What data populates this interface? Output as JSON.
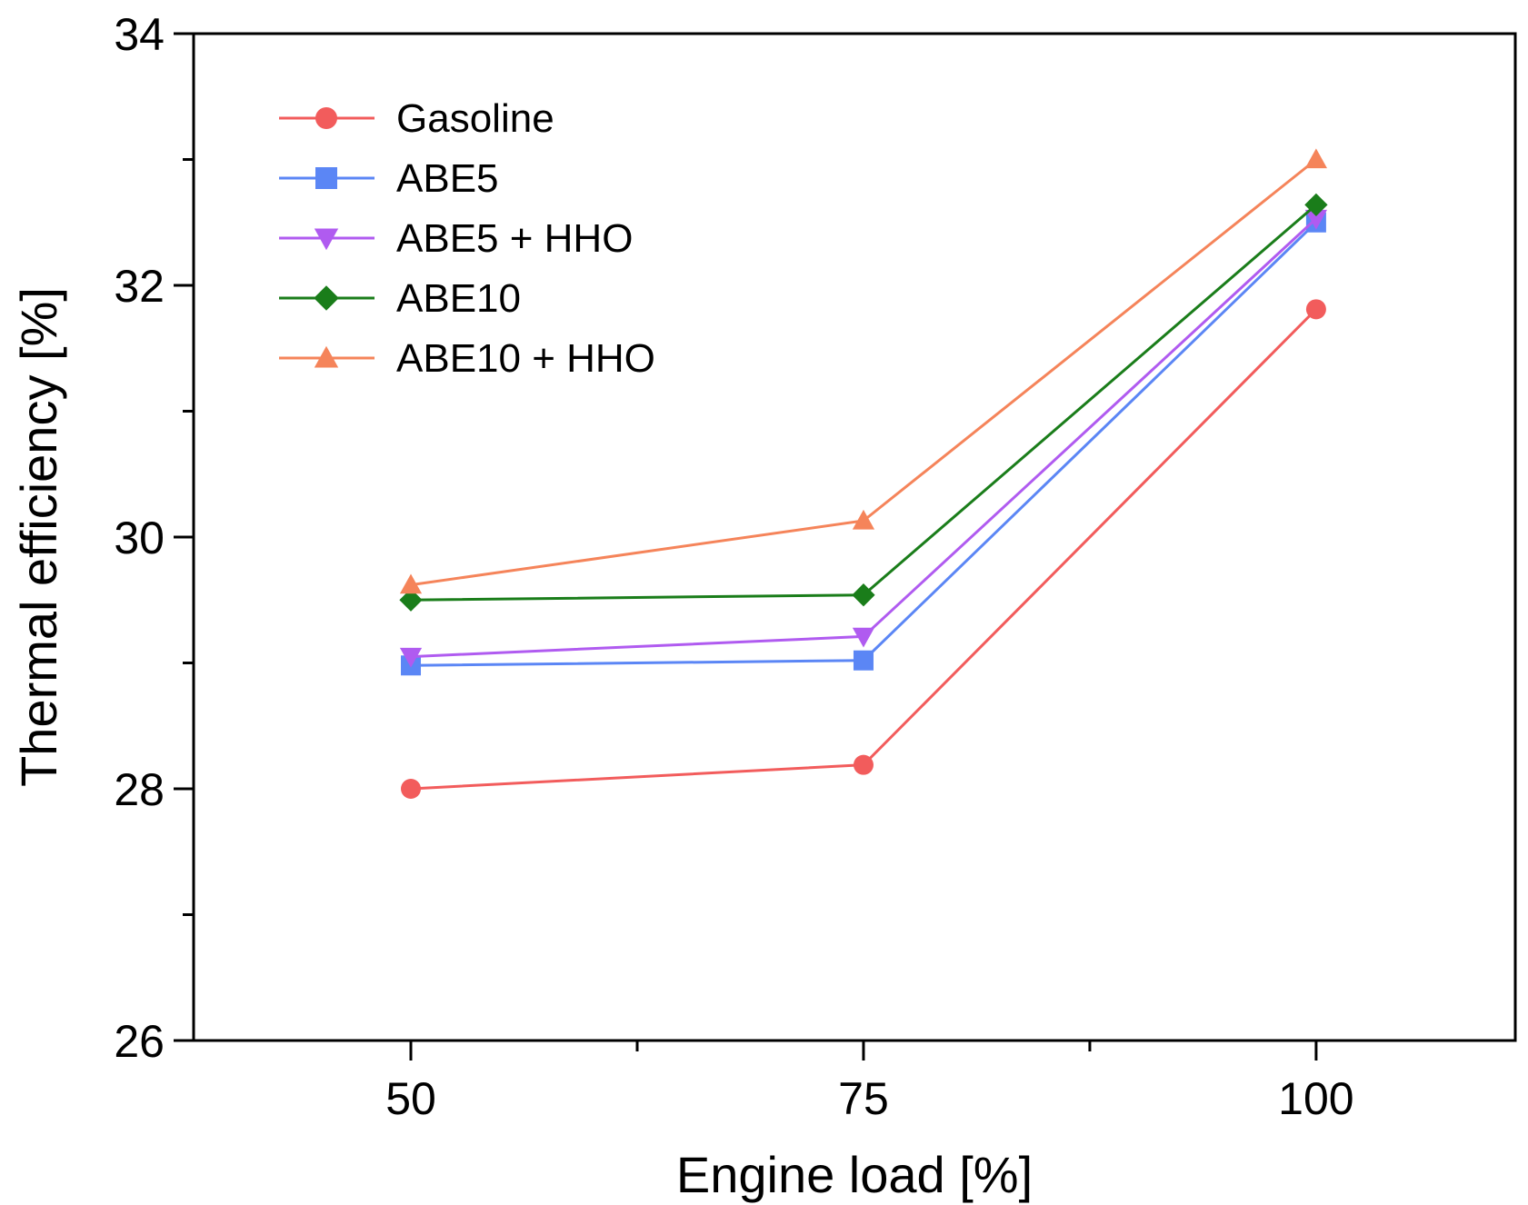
{
  "chart_data": {
    "type": "line",
    "title": "",
    "xlabel": "Engine load [%]",
    "ylabel": "Thermal efficiency [%]",
    "x": [
      50,
      75,
      100
    ],
    "xticks": [
      "50",
      "75",
      "100"
    ],
    "xlim": [
      38,
      111
    ],
    "ylim": [
      26,
      34
    ],
    "yticks": [
      26,
      28,
      30,
      32,
      34
    ],
    "ytick_labels": [
      "26",
      "28",
      "30",
      "32",
      "34"
    ],
    "grid": false,
    "legend_position": "top-left",
    "series": [
      {
        "name": "Gasoline",
        "marker": "circle",
        "color": "#F25C5C",
        "values": [
          28.0,
          28.19,
          31.81
        ]
      },
      {
        "name": "ABE5",
        "marker": "square",
        "color": "#5B86F5",
        "values": [
          28.98,
          29.02,
          32.5
        ]
      },
      {
        "name": "ABE5 + HHO",
        "marker": "triangle-down",
        "color": "#B05BF0",
        "values": [
          29.05,
          29.21,
          32.53
        ]
      },
      {
        "name": "ABE10",
        "marker": "diamond",
        "color": "#1A7D1A",
        "values": [
          29.5,
          29.54,
          32.64
        ]
      },
      {
        "name": "ABE10 + HHO",
        "marker": "triangle-up",
        "color": "#F5845A",
        "values": [
          29.62,
          30.13,
          33.0
        ]
      }
    ]
  }
}
